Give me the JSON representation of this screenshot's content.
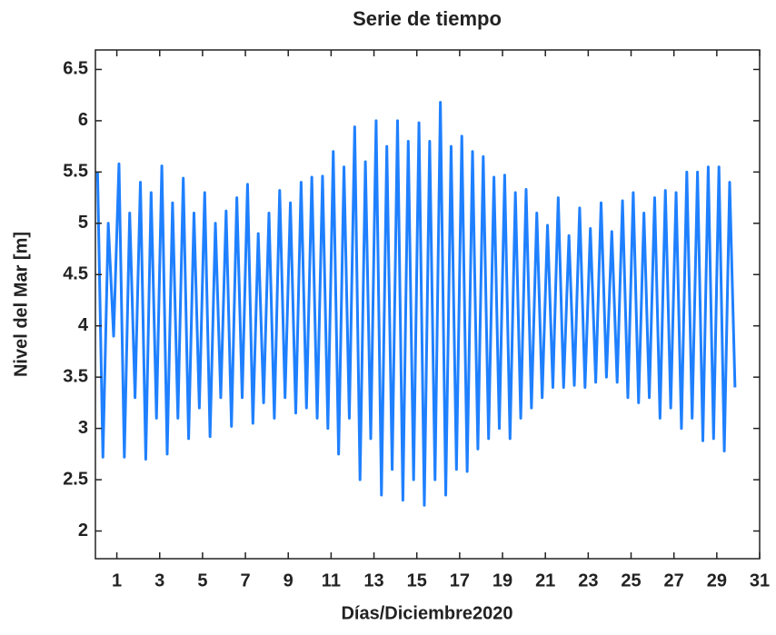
{
  "chart_data": {
    "type": "line",
    "title": "Serie de tiempo",
    "x_label": "Días/Diciembre2020",
    "y_label": "Nivel del Mar [m]",
    "x": [
      0.1,
      0.35,
      0.6,
      0.85,
      1.1,
      1.35,
      1.6,
      1.85,
      2.1,
      2.35,
      2.6,
      2.85,
      3.1,
      3.35,
      3.6,
      3.85,
      4.1,
      4.35,
      4.6,
      4.85,
      5.1,
      5.35,
      5.6,
      5.85,
      6.1,
      6.35,
      6.6,
      6.85,
      7.1,
      7.35,
      7.6,
      7.85,
      8.1,
      8.35,
      8.6,
      8.85,
      9.1,
      9.35,
      9.6,
      9.85,
      10.1,
      10.35,
      10.6,
      10.85,
      11.1,
      11.35,
      11.6,
      11.85,
      12.1,
      12.35,
      12.6,
      12.85,
      13.1,
      13.35,
      13.6,
      13.85,
      14.1,
      14.35,
      14.6,
      14.85,
      15.1,
      15.35,
      15.6,
      15.85,
      16.1,
      16.35,
      16.6,
      16.85,
      17.1,
      17.35,
      17.6,
      17.85,
      18.1,
      18.35,
      18.6,
      18.85,
      19.1,
      19.35,
      19.6,
      19.85,
      20.1,
      20.35,
      20.6,
      20.85,
      21.1,
      21.35,
      21.6,
      21.85,
      22.1,
      22.35,
      22.6,
      22.85,
      23.1,
      23.35,
      23.6,
      23.85,
      24.1,
      24.35,
      24.6,
      24.85,
      25.1,
      25.35,
      25.6,
      25.85,
      26.1,
      26.35,
      26.6,
      26.85,
      27.1,
      27.35,
      27.6,
      27.85,
      28.1,
      28.35,
      28.6,
      28.85,
      29.1,
      29.35,
      29.6,
      29.85
    ],
    "series": [
      {
        "color": "#1f80ff",
        "values": [
          5.5,
          2.72,
          5.0,
          3.9,
          5.58,
          2.72,
          5.1,
          3.3,
          5.4,
          2.7,
          5.3,
          3.1,
          5.56,
          2.75,
          5.2,
          3.1,
          5.44,
          2.9,
          5.1,
          3.2,
          5.3,
          2.92,
          5.0,
          3.3,
          5.12,
          3.02,
          5.25,
          3.3,
          5.38,
          3.05,
          4.9,
          3.25,
          5.1,
          3.1,
          5.32,
          3.3,
          5.2,
          3.15,
          5.4,
          3.2,
          5.45,
          3.1,
          5.46,
          3.0,
          5.7,
          2.75,
          5.55,
          3.1,
          5.94,
          2.5,
          5.6,
          2.9,
          6.0,
          2.35,
          5.75,
          2.6,
          6.0,
          2.3,
          5.8,
          2.5,
          5.98,
          2.25,
          5.8,
          2.5,
          6.18,
          2.35,
          5.75,
          2.6,
          5.85,
          2.58,
          5.7,
          2.8,
          5.65,
          2.9,
          5.45,
          3.0,
          5.47,
          2.9,
          5.3,
          3.1,
          5.33,
          3.2,
          5.1,
          3.3,
          4.98,
          3.4,
          5.25,
          3.4,
          4.88,
          3.42,
          5.15,
          3.4,
          4.95,
          3.45,
          5.2,
          3.5,
          4.92,
          3.45,
          5.22,
          3.3,
          5.3,
          3.25,
          5.1,
          3.3,
          5.25,
          3.1,
          5.32,
          3.2,
          5.3,
          3.0,
          5.5,
          3.1,
          5.5,
          2.88,
          5.55,
          2.9,
          5.55,
          2.78,
          5.4,
          3.4
        ]
      }
    ],
    "xlim": [
      0,
      31
    ],
    "xticks": [
      1,
      3,
      5,
      7,
      9,
      11,
      13,
      15,
      17,
      19,
      21,
      23,
      25,
      27,
      29,
      31
    ],
    "ylim": [
      1.73,
      6.69
    ],
    "yticks": [
      2,
      2.5,
      3,
      3.5,
      4,
      4.5,
      5,
      5.5,
      6,
      6.5
    ]
  }
}
